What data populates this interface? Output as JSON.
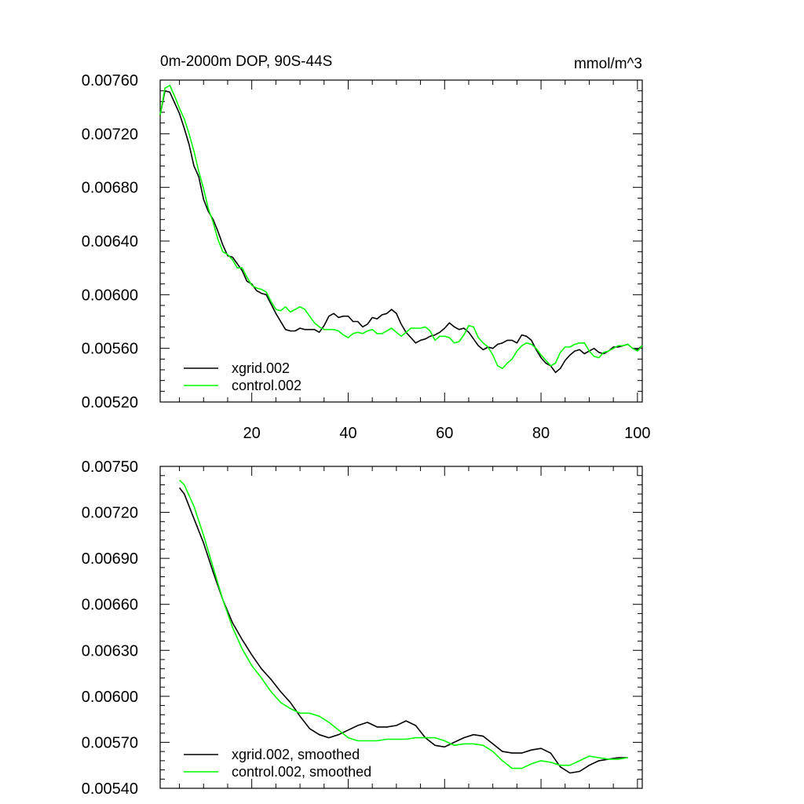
{
  "colors": {
    "xgrid": "#000000",
    "control": "#00ff00"
  },
  "chart_data": [
    {
      "type": "line",
      "title": "0m-2000m DOP, 90S-44S",
      "units": "mmol/m^3",
      "xlim": [
        1,
        101
      ],
      "ylim": [
        0.0052,
        0.0076
      ],
      "yticks": [
        "0.00520",
        "0.00560",
        "0.00600",
        "0.00640",
        "0.00680",
        "0.00720",
        "0.00760"
      ],
      "xticks": [
        "20",
        "40",
        "60",
        "80",
        "100"
      ],
      "legend_position": "bottom-left",
      "series": [
        {
          "name": "xgrid.002",
          "color": "#000000",
          "x": [
            1,
            2,
            3,
            4,
            5,
            6,
            7,
            8,
            9,
            10,
            11,
            12,
            13,
            14,
            15,
            16,
            17,
            18,
            19,
            20,
            21,
            22,
            23,
            24,
            25,
            26,
            27,
            28,
            29,
            30,
            31,
            32,
            33,
            34,
            35,
            36,
            37,
            38,
            39,
            40,
            41,
            42,
            43,
            44,
            45,
            46,
            47,
            48,
            49,
            50,
            51,
            52,
            53,
            54,
            55,
            56,
            57,
            58,
            59,
            60,
            61,
            62,
            63,
            64,
            65,
            66,
            67,
            68,
            69,
            70,
            71,
            72,
            73,
            74,
            75,
            76,
            77,
            78,
            79,
            80,
            81,
            82,
            83,
            84,
            85,
            86,
            87,
            88,
            89,
            90,
            91,
            92,
            93,
            94,
            95,
            96,
            97,
            98,
            99,
            100,
            101
          ],
          "y": [
            0.00734,
            0.00752,
            0.00751,
            0.00743,
            0.00735,
            0.00724,
            0.00712,
            0.00696,
            0.00688,
            0.00671,
            0.00662,
            0.00656,
            0.00647,
            0.00637,
            0.00629,
            0.00628,
            0.00623,
            0.00618,
            0.0061,
            0.00608,
            0.00603,
            0.00601,
            0.006,
            0.00593,
            0.00586,
            0.0058,
            0.00574,
            0.00573,
            0.00573,
            0.00575,
            0.00574,
            0.00574,
            0.00574,
            0.00572,
            0.00577,
            0.00584,
            0.00586,
            0.00583,
            0.00584,
            0.00584,
            0.0058,
            0.0058,
            0.00576,
            0.00578,
            0.00583,
            0.00582,
            0.00585,
            0.00586,
            0.00589,
            0.00586,
            0.00578,
            0.00572,
            0.00568,
            0.00564,
            0.00566,
            0.00567,
            0.00569,
            0.0057,
            0.00572,
            0.00575,
            0.00579,
            0.00576,
            0.00574,
            0.00575,
            0.00572,
            0.00567,
            0.00562,
            0.00559,
            0.00561,
            0.0056,
            0.00563,
            0.00564,
            0.00566,
            0.00566,
            0.00564,
            0.0057,
            0.00569,
            0.00566,
            0.00559,
            0.00553,
            0.00549,
            0.00547,
            0.00542,
            0.00545,
            0.00551,
            0.00555,
            0.00558,
            0.00559,
            0.00556,
            0.00558,
            0.0056,
            0.00557,
            0.00556,
            0.00558,
            0.00561,
            0.00561,
            0.00562,
            0.00563,
            0.0056,
            0.00559,
            0.00562
          ]
        },
        {
          "name": "control.002",
          "color": "#00ff00",
          "x": [
            1,
            2,
            3,
            4,
            5,
            6,
            7,
            8,
            9,
            10,
            11,
            12,
            13,
            14,
            15,
            16,
            17,
            18,
            19,
            20,
            21,
            22,
            23,
            24,
            25,
            26,
            27,
            28,
            29,
            30,
            31,
            32,
            33,
            34,
            35,
            36,
            37,
            38,
            39,
            40,
            41,
            42,
            43,
            44,
            45,
            46,
            47,
            48,
            49,
            50,
            51,
            52,
            53,
            54,
            55,
            56,
            57,
            58,
            59,
            60,
            61,
            62,
            63,
            64,
            65,
            66,
            67,
            68,
            69,
            70,
            71,
            72,
            73,
            74,
            75,
            76,
            77,
            78,
            79,
            80,
            81,
            82,
            83,
            84,
            85,
            86,
            87,
            88,
            89,
            90,
            91,
            92,
            93,
            94,
            95,
            96,
            97,
            98,
            99,
            100,
            101
          ],
          "y": [
            0.00734,
            0.00754,
            0.00756,
            0.00748,
            0.00739,
            0.00731,
            0.0072,
            0.00707,
            0.00692,
            0.00679,
            0.00664,
            0.00654,
            0.00641,
            0.00632,
            0.0063,
            0.00626,
            0.0062,
            0.0062,
            0.00613,
            0.00607,
            0.00605,
            0.00604,
            0.00602,
            0.00595,
            0.00589,
            0.00588,
            0.00591,
            0.00587,
            0.00589,
            0.00591,
            0.00589,
            0.00584,
            0.00579,
            0.00576,
            0.00574,
            0.00574,
            0.00574,
            0.00573,
            0.0057,
            0.00568,
            0.00571,
            0.00572,
            0.00571,
            0.00573,
            0.00574,
            0.00571,
            0.00571,
            0.00573,
            0.00575,
            0.00572,
            0.00569,
            0.00572,
            0.00575,
            0.00575,
            0.00575,
            0.00576,
            0.00573,
            0.00566,
            0.00569,
            0.00569,
            0.00568,
            0.00564,
            0.00565,
            0.0057,
            0.00577,
            0.00576,
            0.00568,
            0.00564,
            0.00561,
            0.00555,
            0.00547,
            0.00545,
            0.00549,
            0.00552,
            0.00558,
            0.00562,
            0.00564,
            0.00563,
            0.0056,
            0.00555,
            0.00551,
            0.00547,
            0.00549,
            0.00557,
            0.00561,
            0.00561,
            0.00563,
            0.00564,
            0.00564,
            0.00558,
            0.00554,
            0.00553,
            0.00557,
            0.00558,
            0.0056,
            0.00562,
            0.00562,
            0.00563,
            0.0056,
            0.00558,
            0.00562
          ]
        }
      ]
    },
    {
      "type": "line",
      "title": "",
      "xlim": [
        1,
        101
      ],
      "ylim": [
        0.0054,
        0.0075
      ],
      "yticks": [
        "0.00540",
        "0.00570",
        "0.00600",
        "0.00630",
        "0.00660",
        "0.00690",
        "0.00720",
        "0.00750"
      ],
      "xticks": [],
      "legend_position": "bottom-left",
      "series": [
        {
          "name": "xgrid.002, smoothed",
          "color": "#000000",
          "x": [
            5,
            6,
            8,
            10,
            12,
            14,
            16,
            18,
            20,
            22,
            24,
            26,
            28,
            30,
            32,
            34,
            36,
            38,
            40,
            42,
            44,
            46,
            48,
            50,
            52,
            54,
            56,
            58,
            60,
            62,
            64,
            66,
            68,
            70,
            72,
            74,
            76,
            78,
            80,
            82,
            84,
            86,
            88,
            90,
            92,
            94,
            96,
            98
          ],
          "y": [
            0.00736,
            0.00732,
            0.00716,
            0.007,
            0.00681,
            0.00663,
            0.00648,
            0.00637,
            0.00627,
            0.00618,
            0.00611,
            0.00603,
            0.00596,
            0.00587,
            0.00579,
            0.00575,
            0.00573,
            0.00575,
            0.00578,
            0.00581,
            0.00583,
            0.0058,
            0.0058,
            0.00581,
            0.00584,
            0.00581,
            0.00573,
            0.00568,
            0.00567,
            0.0057,
            0.00573,
            0.00575,
            0.00574,
            0.00569,
            0.00564,
            0.00563,
            0.00563,
            0.00565,
            0.00566,
            0.00563,
            0.00554,
            0.0055,
            0.00551,
            0.00555,
            0.00558,
            0.00559,
            0.0056,
            0.0056
          ]
        },
        {
          "name": "control.002, smoothed",
          "color": "#00ff00",
          "x": [
            5,
            6,
            8,
            10,
            12,
            14,
            16,
            18,
            20,
            22,
            24,
            26,
            28,
            30,
            32,
            34,
            36,
            38,
            40,
            42,
            44,
            46,
            48,
            50,
            52,
            54,
            56,
            58,
            60,
            62,
            64,
            66,
            68,
            70,
            72,
            74,
            76,
            78,
            80,
            82,
            84,
            86,
            88,
            90,
            92,
            94,
            96,
            98
          ],
          "y": [
            0.00741,
            0.00738,
            0.00724,
            0.00705,
            0.00684,
            0.00663,
            0.00645,
            0.00631,
            0.0062,
            0.00612,
            0.00603,
            0.00596,
            0.00592,
            0.00589,
            0.00589,
            0.00587,
            0.00583,
            0.00578,
            0.00573,
            0.00571,
            0.00571,
            0.00571,
            0.00572,
            0.00572,
            0.00572,
            0.00573,
            0.00573,
            0.00573,
            0.00571,
            0.00568,
            0.00569,
            0.00569,
            0.00568,
            0.00564,
            0.00558,
            0.00553,
            0.00553,
            0.00556,
            0.00558,
            0.00557,
            0.00555,
            0.00555,
            0.00558,
            0.00561,
            0.0056,
            0.00559,
            0.00559,
            0.0056
          ]
        }
      ]
    }
  ]
}
